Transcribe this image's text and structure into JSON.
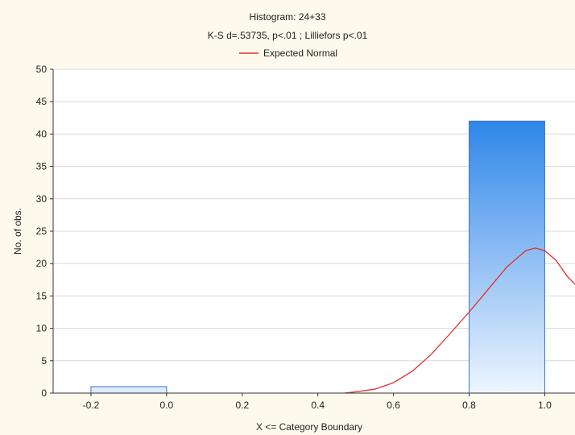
{
  "chart_data": {
    "type": "bar",
    "title": "Histogram: 24+33",
    "subtitle": "K-S d=.53735, p<.01 ; Lilliefors p<.01",
    "legend": {
      "position": "top-center",
      "entries": [
        {
          "label": "Expected Normal",
          "color": "#e03030"
        }
      ]
    },
    "xlabel": "X <= Category Boundary",
    "ylabel": "No. of obs.",
    "xlim": [
      -0.3,
      1.08
    ],
    "ylim": [
      0,
      50
    ],
    "x_ticks": [
      "-0.2",
      "0.0",
      "0.2",
      "0.4",
      "0.6",
      "0.8",
      "1.0"
    ],
    "y_ticks": [
      "0",
      "5",
      "10",
      "15",
      "20",
      "25",
      "30",
      "35",
      "40",
      "45",
      "50"
    ],
    "grid": true,
    "bars": [
      {
        "x0": -0.2,
        "x1": 0.0,
        "value": 1
      },
      {
        "x0": 0.8,
        "x1": 1.0,
        "value": 42
      }
    ],
    "bar_colors": {
      "top": "#2f86e8",
      "bottom": "#eef6ff",
      "edge": "#3a72c8",
      "small_fill": "#ddecff"
    },
    "normal_curve": {
      "color": "#e03030",
      "points": [
        [
          0.47,
          0.0
        ],
        [
          0.5,
          0.2
        ],
        [
          0.55,
          0.6
        ],
        [
          0.6,
          1.6
        ],
        [
          0.65,
          3.4
        ],
        [
          0.7,
          6.0
        ],
        [
          0.75,
          9.2
        ],
        [
          0.8,
          12.5
        ],
        [
          0.85,
          16.0
        ],
        [
          0.9,
          19.5
        ],
        [
          0.95,
          22.0
        ],
        [
          0.975,
          22.4
        ],
        [
          1.0,
          22.0
        ],
        [
          1.03,
          20.5
        ],
        [
          1.06,
          18.0
        ],
        [
          1.08,
          16.8
        ]
      ]
    }
  }
}
